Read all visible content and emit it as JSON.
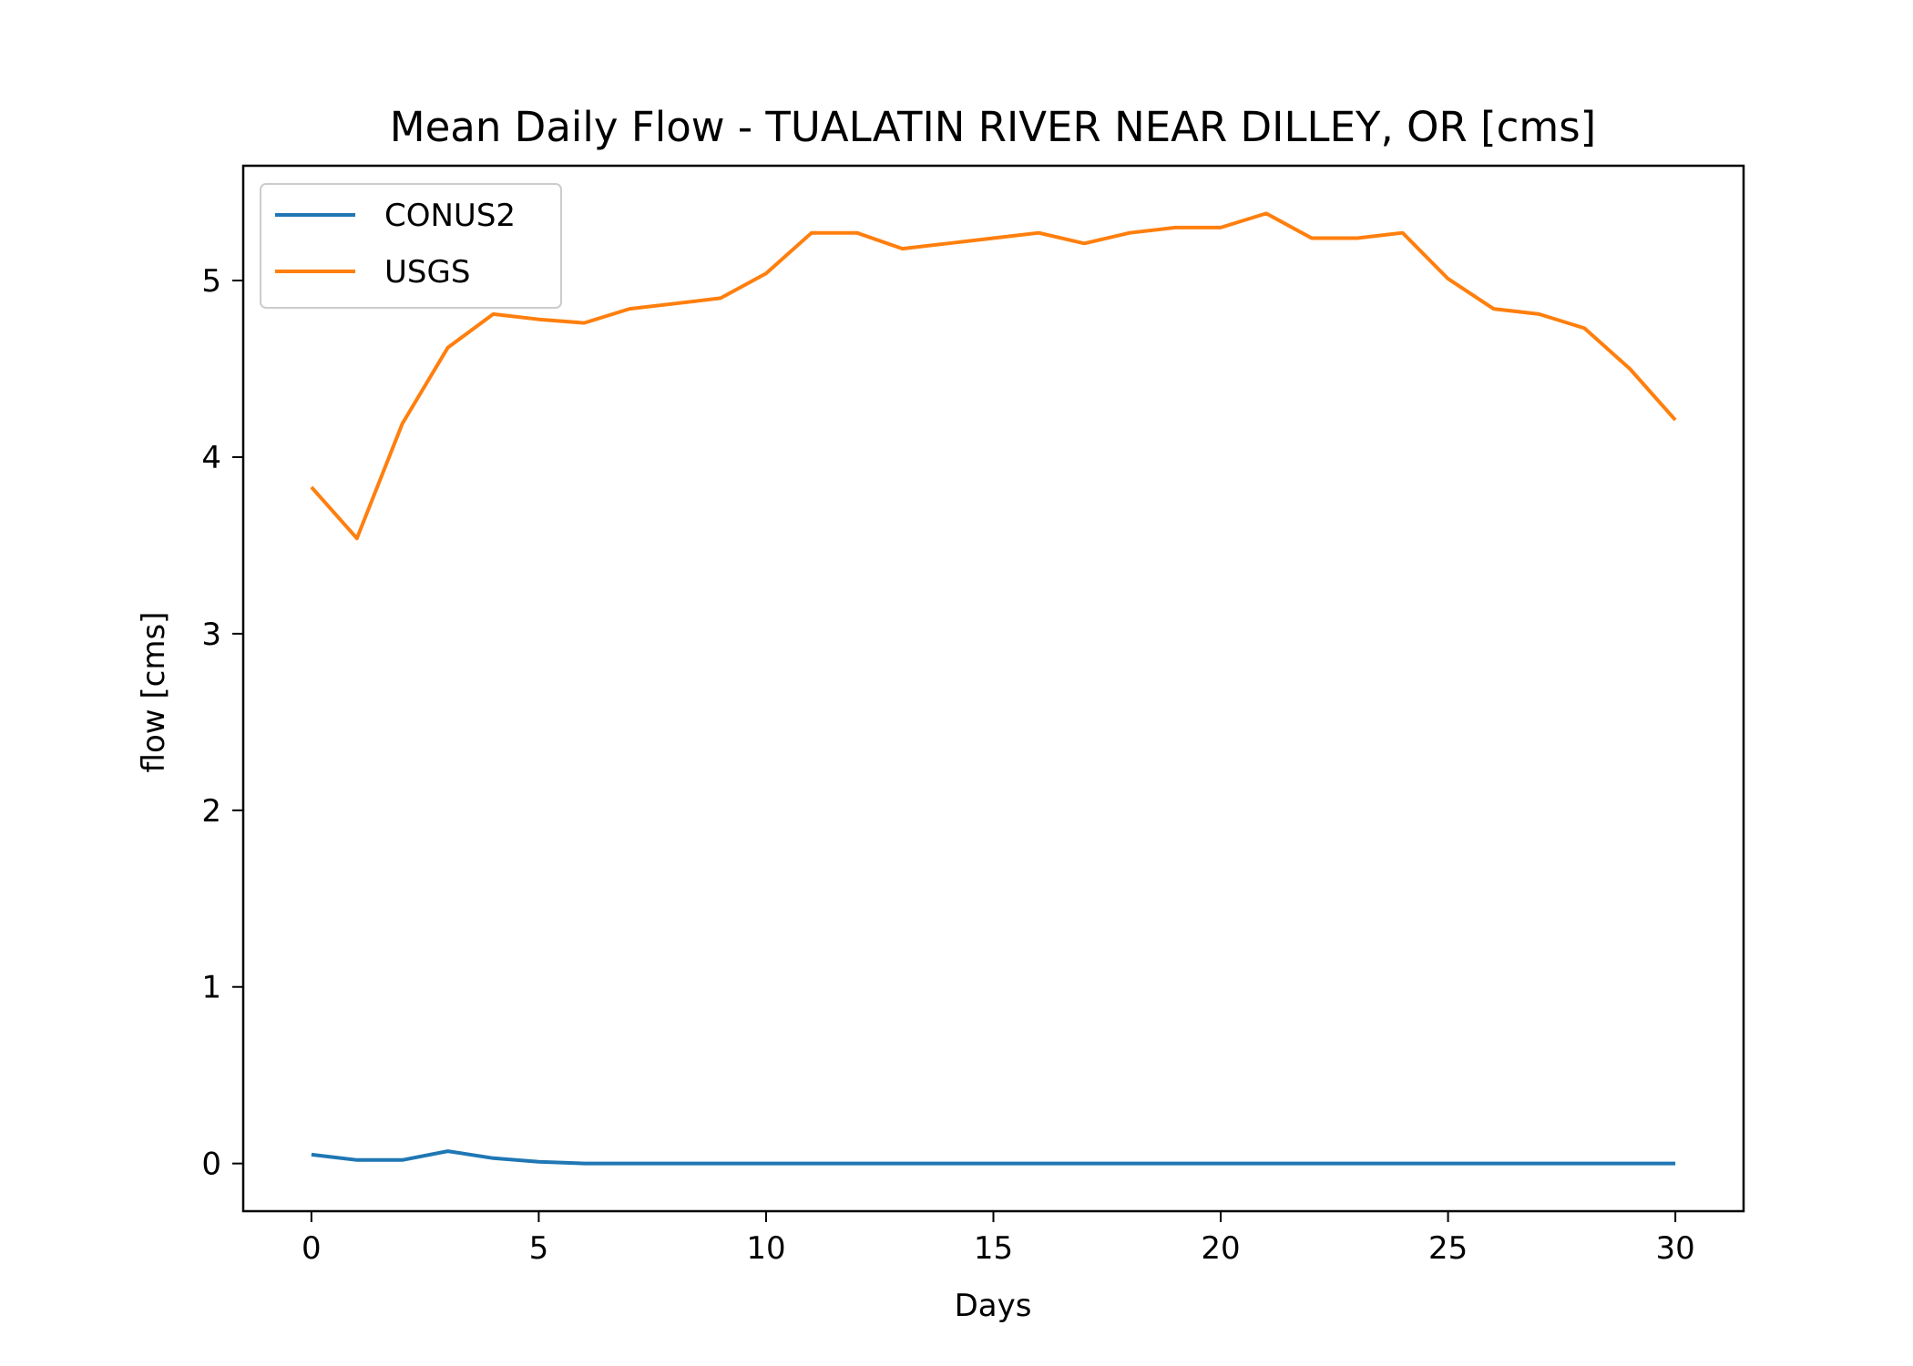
{
  "chart_data": {
    "type": "line",
    "title": "Mean Daily Flow - TUALATIN RIVER NEAR DILLEY, OR [cms]",
    "xlabel": "Days",
    "ylabel": "flow [cms]",
    "xlim": [
      -1.5,
      31.5
    ],
    "ylim": [
      -0.27,
      5.65
    ],
    "xticks": [
      0,
      5,
      10,
      15,
      20,
      25,
      30
    ],
    "yticks": [
      0,
      1,
      2,
      3,
      4,
      5
    ],
    "grid": false,
    "legend_position": "top-left",
    "x": [
      0,
      1,
      2,
      3,
      4,
      5,
      6,
      7,
      8,
      9,
      10,
      11,
      12,
      13,
      14,
      15,
      16,
      17,
      18,
      19,
      20,
      21,
      22,
      23,
      24,
      25,
      26,
      27,
      28,
      29,
      30
    ],
    "series": [
      {
        "name": "CONUS2",
        "color": "#1f77b4",
        "values": [
          0.05,
          0.02,
          0.02,
          0.07,
          0.03,
          0.01,
          0.0,
          0.0,
          0.0,
          0.0,
          0.0,
          0.0,
          0.0,
          0.0,
          0.0,
          0.0,
          0.0,
          0.0,
          0.0,
          0.0,
          0.0,
          0.0,
          0.0,
          0.0,
          0.0,
          0.0,
          0.0,
          0.0,
          0.0,
          0.0,
          0.0
        ]
      },
      {
        "name": "USGS",
        "color": "#ff7f0e",
        "values": [
          3.83,
          3.54,
          4.19,
          4.62,
          4.81,
          4.78,
          4.76,
          4.84,
          4.87,
          4.9,
          5.04,
          5.27,
          5.27,
          5.18,
          5.21,
          5.24,
          5.27,
          5.21,
          5.27,
          5.3,
          5.3,
          5.38,
          5.24,
          5.24,
          5.27,
          5.01,
          4.84,
          4.81,
          4.73,
          4.5,
          4.21
        ]
      }
    ]
  }
}
